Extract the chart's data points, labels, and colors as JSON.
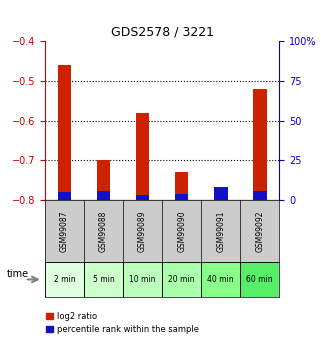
{
  "title": "GDS2578 / 3221",
  "categories": [
    "GSM99087",
    "GSM99088",
    "GSM99089",
    "GSM99090",
    "GSM99091",
    "GSM99092"
  ],
  "time_labels": [
    "2 min",
    "5 min",
    "10 min",
    "20 min",
    "40 min",
    "60 min"
  ],
  "log2_values": [
    -0.46,
    -0.7,
    -0.58,
    -0.73,
    -0.81,
    -0.52
  ],
  "percentile_values": [
    5.0,
    5.5,
    3.5,
    4.0,
    8.0,
    5.5
  ],
  "bar_bottom": -0.8,
  "ylim_left": [
    -0.8,
    -0.4
  ],
  "ylim_right": [
    0,
    100
  ],
  "yticks_left": [
    -0.8,
    -0.7,
    -0.6,
    -0.5,
    -0.4
  ],
  "yticks_right": [
    0,
    25,
    50,
    75,
    100
  ],
  "bar_color_red": "#cc2200",
  "bar_color_blue": "#1111cc",
  "title_color": "#000000",
  "left_tick_color": "#cc0000",
  "right_tick_color": "#0000cc",
  "grid_color": "#000000",
  "bg_plot": "#ffffff",
  "bg_gsm": "#cccccc",
  "time_colors": [
    "#ddffdd",
    "#ccffcc",
    "#bbffbb",
    "#aaffaa",
    "#88ff88",
    "#55ee66"
  ],
  "legend_red_label": "log2 ratio",
  "legend_blue_label": "percentile rank within the sample",
  "bar_width": 0.35
}
